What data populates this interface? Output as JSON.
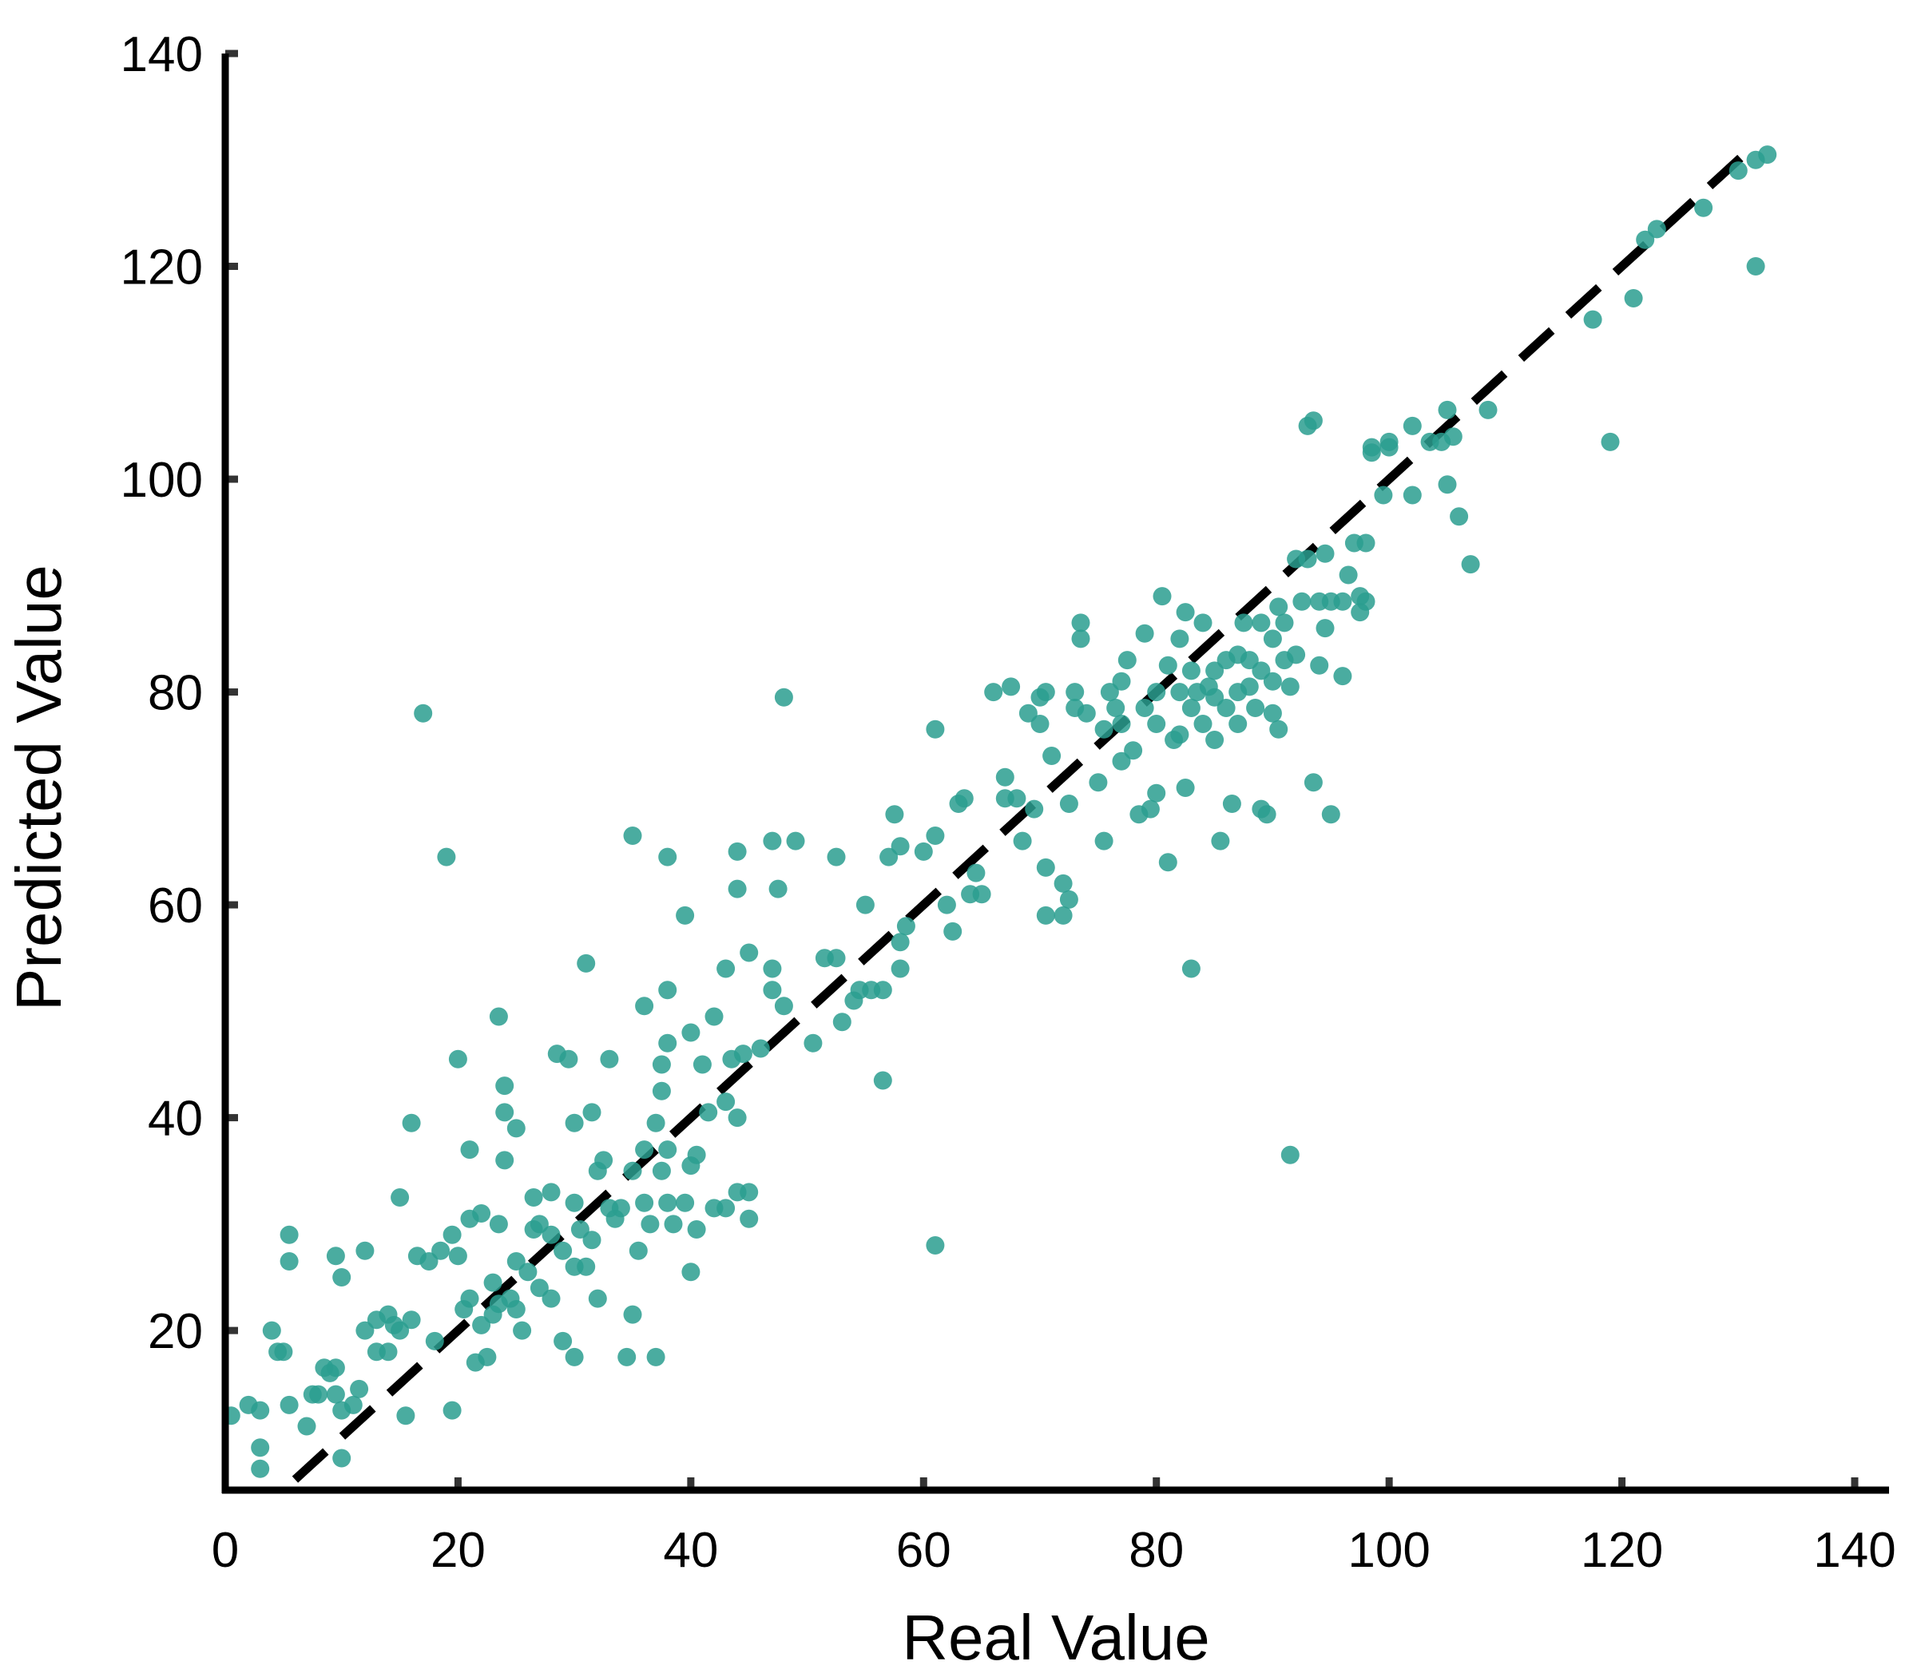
{
  "chart_data": {
    "type": "scatter",
    "title": "",
    "xlabel": "Real Value",
    "ylabel": "Predicted Value",
    "xlim": [
      0,
      140
    ],
    "ylim": [
      5,
      140
    ],
    "xticks": [
      0,
      20,
      40,
      60,
      80,
      100,
      120,
      140
    ],
    "yticks": [
      20,
      40,
      60,
      80,
      100,
      120,
      140
    ],
    "x_tick_labels": [
      "0",
      "20",
      "40",
      "60",
      "80",
      "100",
      "120",
      "140"
    ],
    "y_tick_labels": [
      "20",
      "40",
      "60",
      "80",
      "100",
      "120",
      "140"
    ],
    "grid": false,
    "legend": "none",
    "point_color": "#2a9d8f",
    "reference_line": {
      "style": "dashed",
      "color": "#000000",
      "from": [
        6,
        6
      ],
      "to": [
        130.5,
        130.5
      ]
    },
    "points": [
      [
        0.5,
        12
      ],
      [
        2,
        13
      ],
      [
        3,
        12.5
      ],
      [
        3,
        9
      ],
      [
        3,
        7
      ],
      [
        4,
        20
      ],
      [
        4.5,
        18
      ],
      [
        5,
        18
      ],
      [
        5.5,
        13
      ],
      [
        5.5,
        29
      ],
      [
        5.5,
        26.5
      ],
      [
        7,
        11
      ],
      [
        7.5,
        14
      ],
      [
        8,
        14
      ],
      [
        8.5,
        16.5
      ],
      [
        9,
        16
      ],
      [
        9.5,
        16.5
      ],
      [
        9.5,
        14
      ],
      [
        9.5,
        27
      ],
      [
        10,
        12.5
      ],
      [
        10,
        25
      ],
      [
        10,
        8
      ],
      [
        11,
        13
      ],
      [
        11.5,
        14.5
      ],
      [
        12,
        27.5
      ],
      [
        12,
        20
      ],
      [
        13,
        21
      ],
      [
        13,
        18
      ],
      [
        14,
        21.5
      ],
      [
        14,
        18
      ],
      [
        14.5,
        20.5
      ],
      [
        15,
        32.5
      ],
      [
        15,
        20
      ],
      [
        15.5,
        12
      ],
      [
        16,
        39.5
      ],
      [
        16,
        21
      ],
      [
        16.5,
        27
      ],
      [
        17,
        78
      ],
      [
        17.5,
        26.5
      ],
      [
        18,
        19
      ],
      [
        18.5,
        27.5
      ],
      [
        19,
        64.5
      ],
      [
        19.5,
        12.5
      ],
      [
        19.5,
        29
      ],
      [
        20,
        45.5
      ],
      [
        20,
        27
      ],
      [
        20.5,
        22
      ],
      [
        21,
        37
      ],
      [
        21,
        30.5
      ],
      [
        21,
        23
      ],
      [
        21.5,
        17
      ],
      [
        22,
        31
      ],
      [
        22,
        20.5
      ],
      [
        22.5,
        17.5
      ],
      [
        23,
        24.5
      ],
      [
        23,
        21.5
      ],
      [
        23.5,
        22.5
      ],
      [
        23.5,
        49.5
      ],
      [
        23.5,
        30
      ],
      [
        24,
        43
      ],
      [
        24,
        40.5
      ],
      [
        24,
        36
      ],
      [
        24.5,
        23
      ],
      [
        25,
        39
      ],
      [
        25,
        26.5
      ],
      [
        25,
        22
      ],
      [
        25.5,
        20
      ],
      [
        26,
        25.5
      ],
      [
        26.5,
        32.5
      ],
      [
        26.5,
        29.5
      ],
      [
        27,
        24
      ],
      [
        27,
        30
      ],
      [
        28,
        33
      ],
      [
        28,
        29
      ],
      [
        28,
        23
      ],
      [
        28.5,
        46
      ],
      [
        29,
        19
      ],
      [
        29,
        27.5
      ],
      [
        29.5,
        45.5
      ],
      [
        30,
        39.5
      ],
      [
        30,
        32
      ],
      [
        30,
        26
      ],
      [
        30,
        17.5
      ],
      [
        30.5,
        29.5
      ],
      [
        31,
        54.5
      ],
      [
        31,
        26
      ],
      [
        31.5,
        40.5
      ],
      [
        31.5,
        28.5
      ],
      [
        32,
        35
      ],
      [
        32,
        23
      ],
      [
        32.5,
        36
      ],
      [
        33,
        31.5
      ],
      [
        33,
        45.5
      ],
      [
        33.5,
        30.5
      ],
      [
        34,
        31.5
      ],
      [
        34.5,
        17.5
      ],
      [
        35,
        66.5
      ],
      [
        35,
        35
      ],
      [
        35,
        21.5
      ],
      [
        35.5,
        27.5
      ],
      [
        36,
        32
      ],
      [
        36,
        50.5
      ],
      [
        36,
        37
      ],
      [
        36.5,
        30
      ],
      [
        37,
        39.5
      ],
      [
        37,
        17.5
      ],
      [
        37.5,
        35
      ],
      [
        37.5,
        42.5
      ],
      [
        37.5,
        45
      ],
      [
        38,
        52
      ],
      [
        38,
        64.5
      ],
      [
        38,
        47
      ],
      [
        38,
        37
      ],
      [
        38,
        32
      ],
      [
        38.5,
        30
      ],
      [
        39.5,
        32
      ],
      [
        39.5,
        59
      ],
      [
        40,
        48
      ],
      [
        40,
        35.5
      ],
      [
        40,
        25.5
      ],
      [
        40.5,
        29.5
      ],
      [
        40.5,
        36.5
      ],
      [
        41,
        45
      ],
      [
        41.5,
        40.5
      ],
      [
        42,
        49.5
      ],
      [
        42,
        31.5
      ],
      [
        43,
        54
      ],
      [
        43,
        41.5
      ],
      [
        43,
        31.5
      ],
      [
        43.5,
        45.5
      ],
      [
        44,
        61.5
      ],
      [
        44,
        65
      ],
      [
        44,
        40
      ],
      [
        44,
        33
      ],
      [
        44.5,
        46
      ],
      [
        45,
        55.5
      ],
      [
        45,
        33
      ],
      [
        45,
        30.5
      ],
      [
        46,
        46.5
      ],
      [
        47,
        66
      ],
      [
        47,
        54
      ],
      [
        47,
        52
      ],
      [
        47.5,
        61.5
      ],
      [
        48,
        50.5
      ],
      [
        48,
        79.5
      ],
      [
        49,
        66
      ],
      [
        50.5,
        47
      ],
      [
        51.5,
        55
      ],
      [
        52.5,
        64.5
      ],
      [
        52.5,
        55
      ],
      [
        53,
        49
      ],
      [
        54,
        51
      ],
      [
        54.5,
        52
      ],
      [
        55,
        60
      ],
      [
        55.5,
        52
      ],
      [
        56.5,
        43.5
      ],
      [
        56.5,
        52
      ],
      [
        57,
        64.5
      ],
      [
        57.5,
        68.5
      ],
      [
        58,
        65.5
      ],
      [
        58,
        56.5
      ],
      [
        58,
        54
      ],
      [
        58.5,
        58
      ],
      [
        60,
        65
      ],
      [
        61,
        76.5
      ],
      [
        61,
        66.5
      ],
      [
        61,
        28
      ],
      [
        62,
        60
      ],
      [
        62.5,
        57.5
      ],
      [
        63,
        69.5
      ],
      [
        63.5,
        70
      ],
      [
        64,
        61
      ],
      [
        64.5,
        63
      ],
      [
        65,
        61
      ],
      [
        66,
        80
      ],
      [
        67,
        70
      ],
      [
        67,
        72
      ],
      [
        67.5,
        80.5
      ],
      [
        68,
        70
      ],
      [
        68.5,
        66
      ],
      [
        69,
        78
      ],
      [
        69.5,
        69
      ],
      [
        70,
        79.5
      ],
      [
        70,
        77
      ],
      [
        70.5,
        80
      ],
      [
        70.5,
        63.5
      ],
      [
        70.5,
        59
      ],
      [
        71,
        74
      ],
      [
        72,
        59
      ],
      [
        72,
        62
      ],
      [
        72.5,
        60.5
      ],
      [
        72.5,
        69.5
      ],
      [
        73,
        80
      ],
      [
        73,
        78.5
      ],
      [
        73.5,
        85
      ],
      [
        73.5,
        86.5
      ],
      [
        74,
        78
      ],
      [
        75,
        71.5
      ],
      [
        75.5,
        66
      ],
      [
        75.5,
        76.5
      ],
      [
        76,
        80
      ],
      [
        76.5,
        78.5
      ],
      [
        77,
        81
      ],
      [
        77,
        77
      ],
      [
        77,
        73.5
      ],
      [
        77.5,
        83
      ],
      [
        78,
        74.5
      ],
      [
        78.5,
        68.5
      ],
      [
        79,
        85.5
      ],
      [
        79,
        78.5
      ],
      [
        79.5,
        69
      ],
      [
        80,
        80
      ],
      [
        80,
        77
      ],
      [
        80,
        70.5
      ],
      [
        80.5,
        89
      ],
      [
        81,
        64
      ],
      [
        81,
        82.5
      ],
      [
        81.5,
        75.5
      ],
      [
        82,
        76
      ],
      [
        82,
        80
      ],
      [
        82,
        85
      ],
      [
        82.5,
        87.5
      ],
      [
        82.5,
        71
      ],
      [
        83,
        82
      ],
      [
        83,
        78.5
      ],
      [
        83,
        54
      ],
      [
        83.5,
        80
      ],
      [
        84,
        77
      ],
      [
        84,
        86.5
      ],
      [
        84.5,
        80.5
      ],
      [
        85,
        79.5
      ],
      [
        85,
        82
      ],
      [
        85,
        75.5
      ],
      [
        85.5,
        66
      ],
      [
        86,
        83
      ],
      [
        86,
        78.5
      ],
      [
        86.5,
        69.5
      ],
      [
        87,
        80
      ],
      [
        87,
        83.5
      ],
      [
        87,
        77
      ],
      [
        87.5,
        86.5
      ],
      [
        88,
        80.5
      ],
      [
        88,
        83
      ],
      [
        88.5,
        78.5
      ],
      [
        89,
        82
      ],
      [
        89,
        86.5
      ],
      [
        89,
        69
      ],
      [
        89.5,
        68.5
      ],
      [
        90,
        85
      ],
      [
        90,
        81
      ],
      [
        90,
        78
      ],
      [
        90.5,
        76.5
      ],
      [
        90.5,
        88
      ],
      [
        91,
        83
      ],
      [
        91,
        86.5
      ],
      [
        91.5,
        80.5
      ],
      [
        91.5,
        36.5
      ],
      [
        92,
        92.5
      ],
      [
        92,
        83.5
      ],
      [
        92.5,
        88.5
      ],
      [
        93,
        92.5
      ],
      [
        93,
        105
      ],
      [
        93.5,
        105.5
      ],
      [
        93.5,
        71.5
      ],
      [
        94,
        82.5
      ],
      [
        94,
        88.5
      ],
      [
        94.5,
        86
      ],
      [
        94.5,
        93
      ],
      [
        95,
        68.5
      ],
      [
        95,
        88.5
      ],
      [
        96,
        88.5
      ],
      [
        96,
        81.5
      ],
      [
        96.5,
        91
      ],
      [
        97,
        94
      ],
      [
        97.5,
        89
      ],
      [
        97.5,
        87.5
      ],
      [
        98,
        88.5
      ],
      [
        98,
        94
      ],
      [
        98.5,
        103
      ],
      [
        98.5,
        102.5
      ],
      [
        99.5,
        98.5
      ],
      [
        100,
        103.5
      ],
      [
        100,
        103
      ],
      [
        102,
        105
      ],
      [
        102,
        98.5
      ],
      [
        103.5,
        103.5
      ],
      [
        104.5,
        103.5
      ],
      [
        105,
        106.5
      ],
      [
        105,
        99.5
      ],
      [
        105.5,
        104
      ],
      [
        106,
        96.5
      ],
      [
        107,
        92
      ],
      [
        108.5,
        106.5
      ],
      [
        117.5,
        115
      ],
      [
        119,
        103.5
      ],
      [
        121,
        117
      ],
      [
        122,
        122.5
      ],
      [
        123,
        123.5
      ],
      [
        127,
        125.5
      ],
      [
        130,
        129
      ],
      [
        131.5,
        130
      ],
      [
        131.5,
        120
      ],
      [
        132.5,
        130.5
      ]
    ]
  }
}
